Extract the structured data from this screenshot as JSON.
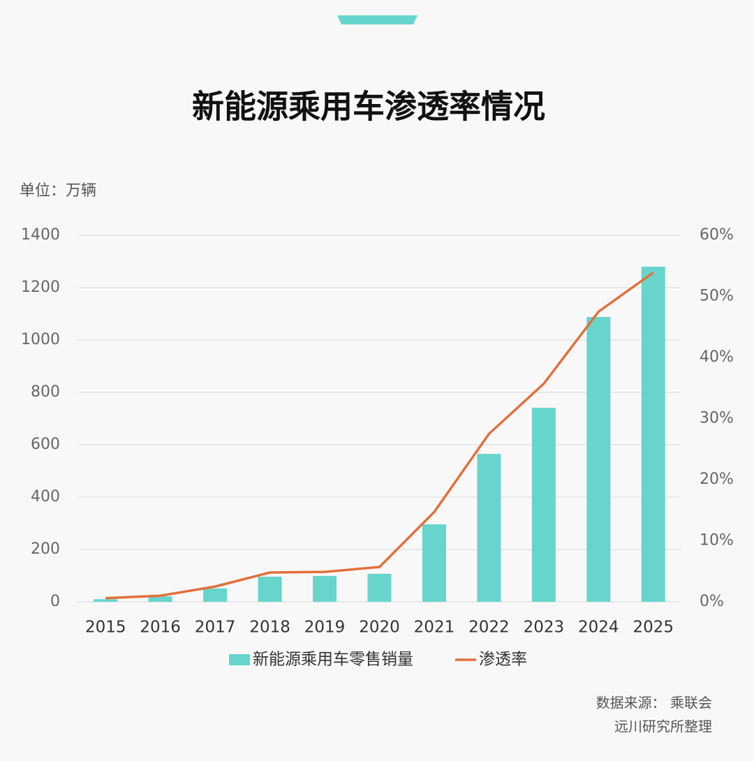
{
  "chart_data": {
    "type": "bar-line",
    "title": "新能源乘用车渗透率情况",
    "y_axis_label": "单位：万辆",
    "categories": [
      "2015",
      "2016",
      "2017",
      "2018",
      "2019",
      "2020",
      "2021",
      "2022",
      "2023",
      "2024",
      "2025"
    ],
    "series": [
      {
        "name": "新能源乘用车零售销量",
        "type": "bar",
        "color": "#67d5cc",
        "values": [
          10,
          21,
          51,
          96,
          99,
          107,
          296,
          565,
          741,
          1088,
          1280
        ]
      },
      {
        "name": "渗透率",
        "type": "line",
        "axis": "y2",
        "color": "#e2703a",
        "values": [
          0.6,
          1.0,
          2.5,
          4.8,
          4.9,
          5.7,
          14.7,
          27.5,
          35.7,
          47.5,
          53.9
        ]
      }
    ],
    "ylim": [
      0,
      1400
    ],
    "yticks": [
      0,
      200,
      400,
      600,
      800,
      1000,
      1200,
      1400
    ],
    "y2lim": [
      0,
      60
    ],
    "y2ticks": [
      {
        "value": 0,
        "label": "0%"
      },
      {
        "value": 10,
        "label": "10%"
      },
      {
        "value": 20,
        "label": "20%"
      },
      {
        "value": 30,
        "label": "30%"
      },
      {
        "value": 40,
        "label": "40%"
      },
      {
        "value": 50,
        "label": "50%"
      },
      {
        "value": 60,
        "label": "60%"
      }
    ],
    "grid": true,
    "legend": "bottom",
    "source": [
      "数据来源： 乘联会",
      "远川研究所整理"
    ]
  }
}
